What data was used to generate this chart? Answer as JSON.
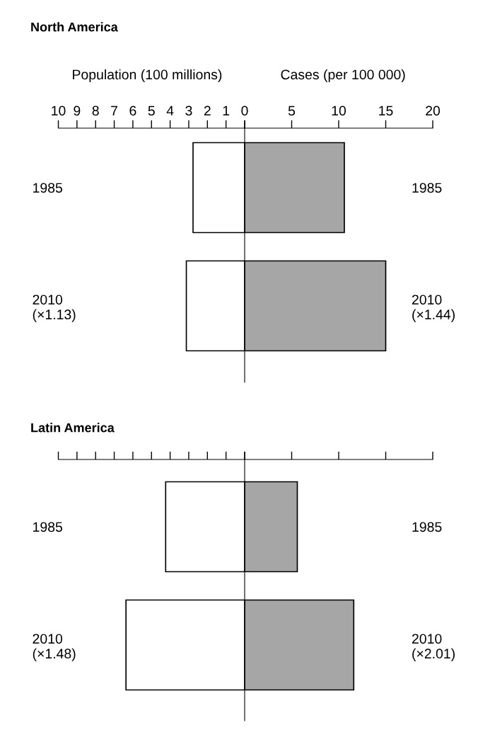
{
  "chart_data": [
    {
      "type": "bar",
      "orientation": "horizontal",
      "title": "North America",
      "xlabel": "Population (100 millions)",
      "categories": [
        "1985",
        "2010\n(×1.13)"
      ],
      "values": [
        2.77,
        3.13
      ],
      "color": "#ffffff",
      "xlim": [
        10,
        0
      ],
      "xticks": [
        10,
        9,
        8,
        7,
        6,
        5,
        4,
        3,
        2,
        1,
        {
          "value": 0,
          "label": null
        }
      ]
    },
    {
      "type": "bar",
      "orientation": "horizontal",
      "xlabel": "Cases (per 100 000)",
      "categories": [
        "1985",
        "2010\n(×1.44)"
      ],
      "values": [
        10.6,
        15.0
      ],
      "color": "#a6a6a6",
      "xlim": [
        0,
        20
      ],
      "xticks": [
        0,
        5,
        10,
        15,
        20
      ]
    },
    {
      "type": "bar",
      "orientation": "horizontal",
      "title": "Latin America",
      "categories": [
        "1985",
        "2010\n(×1.48)"
      ],
      "values": [
        4.24,
        6.37
      ],
      "color": "#ffffff",
      "xlim": [
        10,
        0
      ],
      "xticks": [
        10,
        9,
        8,
        7,
        6,
        5,
        4,
        3,
        2,
        1,
        {
          "value": 0,
          "label": null
        }
      ],
      "tick_labels": "y"
    },
    {
      "type": "bar",
      "orientation": "horizontal",
      "categories": [
        "1985",
        "2010\n(×2.01)"
      ],
      "values": [
        5.6,
        11.6
      ],
      "color": "#a6a6a6",
      "xlim": [
        0,
        20
      ],
      "xticks": [
        0,
        5,
        10,
        15,
        20
      ],
      "tick_labels": "y"
    }
  ]
}
